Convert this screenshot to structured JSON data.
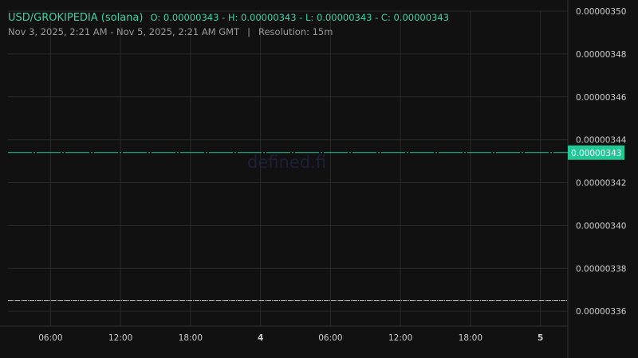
{
  "header": {
    "pair": "USD/GROKIPEDIA (solana)",
    "ohlc": "O: 0.00000343 - H: 0.00000343 - L: 0.00000343 - C: 0.00000343",
    "range": "Nov 3, 2025, 2:21 AM - Nov 5, 2025, 2:21 AM GMT",
    "separator": "|",
    "resolution": "Resolution: 15m"
  },
  "watermark": "defined.fi",
  "colors": {
    "background": "#111111",
    "grid": "#2a2a2a",
    "price": "#26c49a",
    "price_label_bg": "#1fc894",
    "secondary": "#cccccc",
    "text": "#cccccc"
  },
  "chart_data": {
    "type": "line",
    "x_range": [
      "2025-11-03T02:21Z",
      "2025-11-05T02:21Z"
    ],
    "x_ticks": [
      {
        "t": "2025-11-03T06:00Z",
        "label": "06:00",
        "bold": false
      },
      {
        "t": "2025-11-03T12:00Z",
        "label": "12:00",
        "bold": false
      },
      {
        "t": "2025-11-03T18:00Z",
        "label": "18:00",
        "bold": false
      },
      {
        "t": "2025-11-04T00:00Z",
        "label": "4",
        "bold": true
      },
      {
        "t": "2025-11-04T06:00Z",
        "label": "06:00",
        "bold": false
      },
      {
        "t": "2025-11-04T12:00Z",
        "label": "12:00",
        "bold": false
      },
      {
        "t": "2025-11-04T18:00Z",
        "label": "18:00",
        "bold": false
      },
      {
        "t": "2025-11-05T00:00Z",
        "label": "5",
        "bold": true
      }
    ],
    "y_ticks": [
      "0.00000350",
      "0.00000348",
      "0.00000346",
      "0.00000344",
      "0.00000342",
      "0.00000340",
      "0.00000338",
      "0.00000336"
    ],
    "ylim": [
      3.353e-06,
      3.5e-06
    ],
    "grid": true,
    "last_price_label": "0.00000343",
    "series": [
      {
        "values": [
          3.434e-06,
          3.434e-06
        ],
        "color": "#26c49a",
        "style": "dash-dot"
      },
      {
        "values": [
          3.365e-06,
          3.365e-06
        ],
        "color": "#cccccc",
        "style": "dotted"
      }
    ]
  }
}
